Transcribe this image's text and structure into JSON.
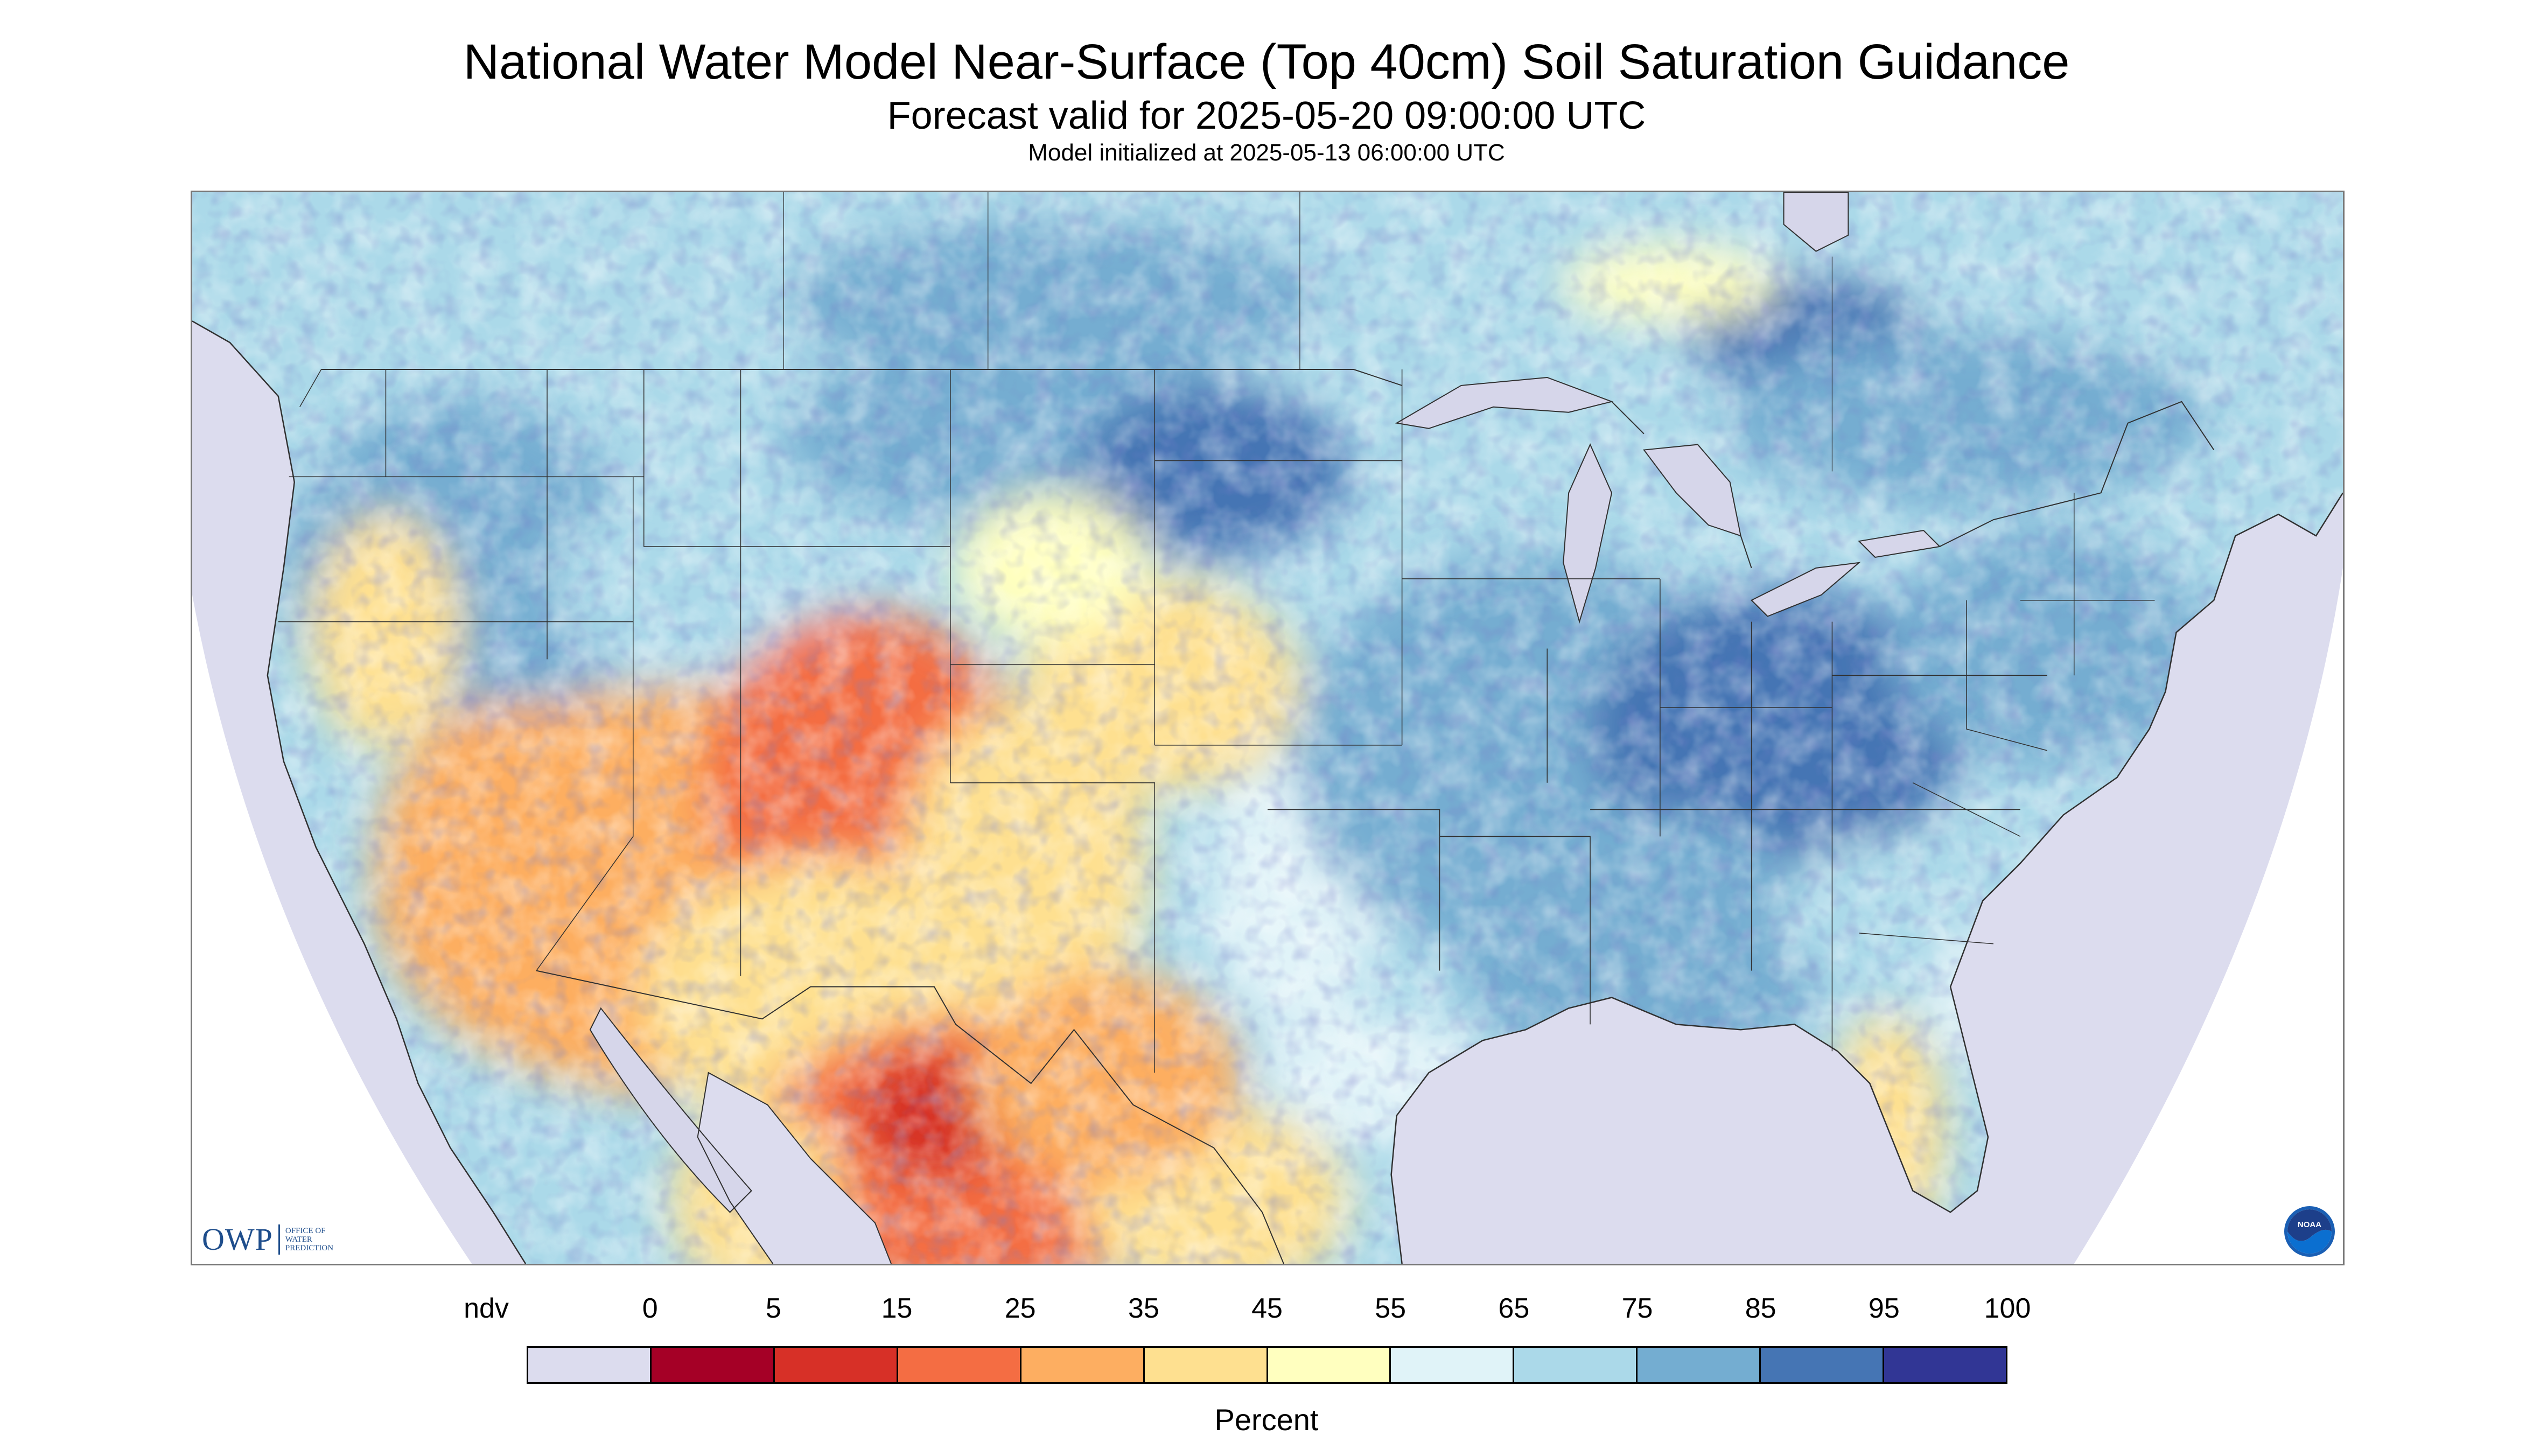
{
  "header": {
    "title": "National Water Model Near-Surface (Top 40cm) Soil Saturation Guidance",
    "valid": "Forecast valid for 2025-05-20 09:00:00 UTC",
    "initialized": "Model initialized at 2025-05-13 06:00:00 UTC"
  },
  "logos": {
    "owp_text": "OWP",
    "owp_line1": "OFFICE OF",
    "owp_line2": "WATER",
    "owp_line3": "PREDICTION",
    "noaa_text": "NOAA"
  },
  "colors": {
    "ndv": "#dcdcee",
    "water": "#d6d6ea",
    "border": "#303030"
  },
  "legend": {
    "units": "Percent",
    "labels": [
      "ndv",
      "0",
      "5",
      "15",
      "25",
      "35",
      "45",
      "55",
      "65",
      "75",
      "85",
      "95",
      "100"
    ],
    "bins": [
      {
        "range": "ndv",
        "color": "#dcdcee"
      },
      {
        "range": "0-5",
        "color": "#a50026"
      },
      {
        "range": "5-15",
        "color": "#d73027"
      },
      {
        "range": "15-25",
        "color": "#f46d43"
      },
      {
        "range": "25-35",
        "color": "#fdae61"
      },
      {
        "range": "35-45",
        "color": "#fee090"
      },
      {
        "range": "45-55",
        "color": "#ffffbf"
      },
      {
        "range": "55-65",
        "color": "#e0f3f8"
      },
      {
        "range": "65-75",
        "color": "#abd9e9"
      },
      {
        "range": "75-85",
        "color": "#74add1"
      },
      {
        "range": "85-95",
        "color": "#4575b4"
      },
      {
        "range": "95-100",
        "color": "#313695"
      }
    ]
  }
}
